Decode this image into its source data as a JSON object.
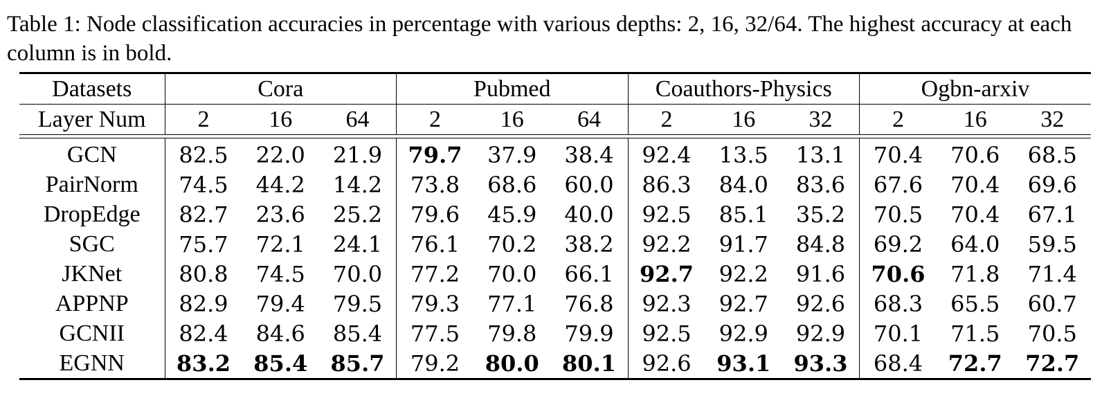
{
  "caption": "Table 1: Node classification accuracies in percentage with various depths: 2, 16, 32/64. The highest accuracy at each column is in bold.",
  "header": {
    "datasets_label": "Datasets",
    "layer_label": "Layer Num",
    "groups": [
      {
        "name": "Cora",
        "depths": [
          "2",
          "16",
          "64"
        ]
      },
      {
        "name": "Pubmed",
        "depths": [
          "2",
          "16",
          "64"
        ]
      },
      {
        "name": "Coauthors-Physics",
        "depths": [
          "2",
          "16",
          "32"
        ]
      },
      {
        "name": "Ogbn-arxiv",
        "depths": [
          "2",
          "16",
          "32"
        ]
      }
    ]
  },
  "rows": [
    {
      "method": "GCN",
      "values": [
        "82.5",
        "22.0",
        "21.9",
        "79.7",
        "37.9",
        "38.4",
        "92.4",
        "13.5",
        "13.1",
        "70.4",
        "70.6",
        "68.5"
      ],
      "bold": [
        3
      ]
    },
    {
      "method": "PairNorm",
      "values": [
        "74.5",
        "44.2",
        "14.2",
        "73.8",
        "68.6",
        "60.0",
        "86.3",
        "84.0",
        "83.6",
        "67.6",
        "70.4",
        "69.6"
      ],
      "bold": []
    },
    {
      "method": "DropEdge",
      "values": [
        "82.7",
        "23.6",
        "25.2",
        "79.6",
        "45.9",
        "40.0",
        "92.5",
        "85.1",
        "35.2",
        "70.5",
        "70.4",
        "67.1"
      ],
      "bold": []
    },
    {
      "method": "SGC",
      "values": [
        "75.7",
        "72.1",
        "24.1",
        "76.1",
        "70.2",
        "38.2",
        "92.2",
        "91.7",
        "84.8",
        "69.2",
        "64.0",
        "59.5"
      ],
      "bold": []
    },
    {
      "method": "JKNet",
      "values": [
        "80.8",
        "74.5",
        "70.0",
        "77.2",
        "70.0",
        "66.1",
        "92.7",
        "92.2",
        "91.6",
        "70.6",
        "71.8",
        "71.4"
      ],
      "bold": [
        6,
        9
      ]
    },
    {
      "method": "APPNP",
      "values": [
        "82.9",
        "79.4",
        "79.5",
        "79.3",
        "77.1",
        "76.8",
        "92.3",
        "92.7",
        "92.6",
        "68.3",
        "65.5",
        "60.7"
      ],
      "bold": []
    },
    {
      "method": "GCNII",
      "values": [
        "82.4",
        "84.6",
        "85.4",
        "77.5",
        "79.8",
        "79.9",
        "92.5",
        "92.9",
        "92.9",
        "70.1",
        "71.5",
        "70.5"
      ],
      "bold": []
    },
    {
      "method": "EGNN",
      "values": [
        "83.2",
        "85.4",
        "85.7",
        "79.2",
        "80.0",
        "80.1",
        "92.6",
        "93.1",
        "93.3",
        "68.4",
        "72.7",
        "72.7"
      ],
      "bold": [
        0,
        1,
        2,
        4,
        5,
        7,
        8,
        10,
        11
      ]
    }
  ]
}
